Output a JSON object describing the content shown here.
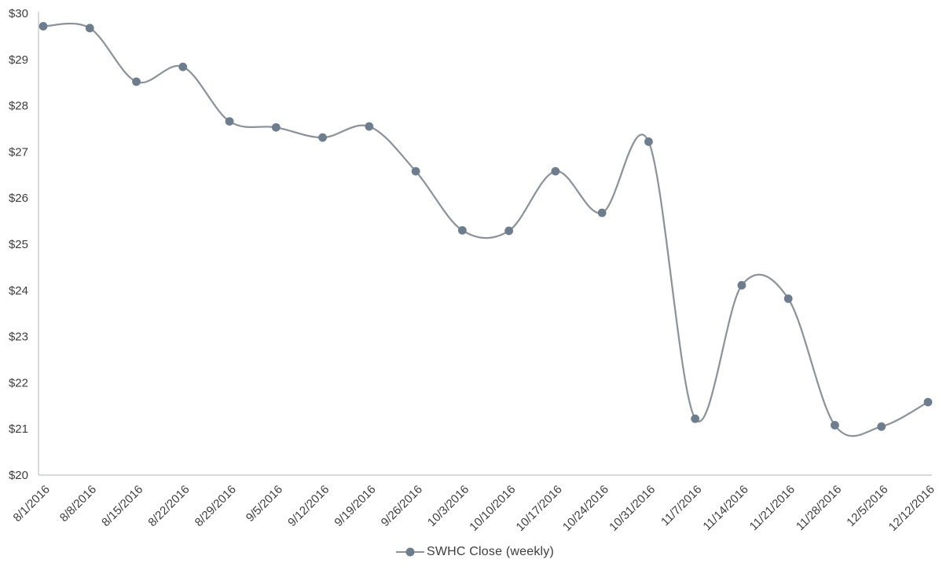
{
  "chart_data": {
    "type": "line",
    "title": "",
    "xlabel": "",
    "ylabel": "",
    "x": [
      "8/1/2016",
      "8/8/2016",
      "8/15/2016",
      "8/22/2016",
      "8/29/2016",
      "9/5/2016",
      "9/12/2016",
      "9/19/2016",
      "9/26/2016",
      "10/3/2016",
      "10/10/2016",
      "10/17/2016",
      "10/24/2016",
      "10/31/2016",
      "11/7/2016",
      "11/14/2016",
      "11/21/2016",
      "11/28/2016",
      "12/5/2016",
      "12/12/2016"
    ],
    "series": [
      {
        "name": "SWHC Close (weekly)",
        "values": [
          29.72,
          29.68,
          28.52,
          28.84,
          27.66,
          27.53,
          27.31,
          27.55,
          26.58,
          25.3,
          25.29,
          26.58,
          25.68,
          27.22,
          21.22,
          24.11,
          23.82,
          21.08,
          21.05,
          21.58
        ]
      }
    ],
    "ylim": [
      20,
      30
    ],
    "y_tick_values": [
      20,
      21,
      22,
      23,
      24,
      25,
      26,
      27,
      28,
      29,
      30
    ],
    "y_tick_labels": [
      "$20",
      "$21",
      "$22",
      "$23",
      "$24",
      "$25",
      "$26",
      "$27",
      "$28",
      "$29",
      "$30"
    ],
    "x_label_rotation": -45,
    "grid": false,
    "smooth": true,
    "marker": "circle",
    "legend_position": "bottom",
    "colors": {
      "line": "#8c939b",
      "marker": "#6e7d8d",
      "axis": "#b3b6ba",
      "text": "#3d3d3d"
    }
  }
}
